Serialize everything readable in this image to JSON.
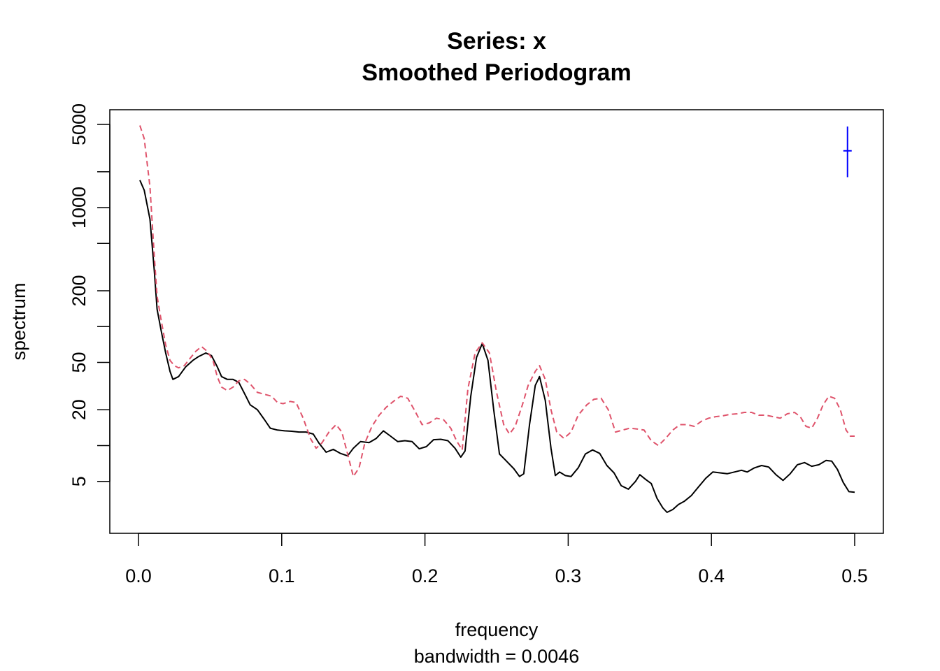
{
  "chart_data": {
    "type": "line",
    "title": "Series: x",
    "subtitle": "Smoothed Periodogram",
    "xlabel": "frequency",
    "xlabel_sub": "bandwidth = 0.0046",
    "ylabel": "spectrum",
    "y_scale": "log",
    "xlim": [
      0,
      0.5
    ],
    "ylim": [
      2.5,
      5000
    ],
    "x_ticks": [
      0.0,
      0.1,
      0.2,
      0.3,
      0.4,
      0.5
    ],
    "x_tick_labels": [
      "0.0",
      "0.1",
      "0.2",
      "0.3",
      "0.4",
      "0.5"
    ],
    "y_ticks": [
      5,
      10,
      20,
      50,
      100,
      200,
      500,
      1000,
      2000,
      5000
    ],
    "y_tick_labels": [
      "5",
      "",
      "20",
      "50",
      "",
      "200",
      "",
      "1000",
      "",
      "5000"
    ],
    "grid": false,
    "series": [
      {
        "color": "#000000",
        "dash": "solid",
        "points": [
          [
            0.001,
            1700
          ],
          [
            0.004,
            1400
          ],
          [
            0.008,
            800
          ],
          [
            0.011,
            300
          ],
          [
            0.013,
            140
          ],
          [
            0.016,
            90
          ],
          [
            0.019,
            60
          ],
          [
            0.022,
            42
          ],
          [
            0.024,
            36
          ],
          [
            0.028,
            38
          ],
          [
            0.033,
            46
          ],
          [
            0.038,
            52
          ],
          [
            0.042,
            56
          ],
          [
            0.047,
            60
          ],
          [
            0.051,
            57
          ],
          [
            0.055,
            46
          ],
          [
            0.058,
            38
          ],
          [
            0.062,
            36
          ],
          [
            0.066,
            36
          ],
          [
            0.07,
            34
          ],
          [
            0.075,
            26
          ],
          [
            0.078,
            22
          ],
          [
            0.083,
            20
          ],
          [
            0.088,
            16.5
          ],
          [
            0.092,
            14
          ],
          [
            0.097,
            13.5
          ],
          [
            0.102,
            13.3
          ],
          [
            0.107,
            13.2
          ],
          [
            0.112,
            13.0
          ],
          [
            0.117,
            13.0
          ],
          [
            0.122,
            12.5
          ],
          [
            0.126,
            10.5
          ],
          [
            0.131,
            8.8
          ],
          [
            0.136,
            9.3
          ],
          [
            0.141,
            8.6
          ],
          [
            0.146,
            8.2
          ],
          [
            0.15,
            9.5
          ],
          [
            0.155,
            10.8
          ],
          [
            0.161,
            10.6
          ],
          [
            0.166,
            11.5
          ],
          [
            0.171,
            13.3
          ],
          [
            0.176,
            12.0
          ],
          [
            0.181,
            10.8
          ],
          [
            0.186,
            11.0
          ],
          [
            0.191,
            10.8
          ],
          [
            0.196,
            9.4
          ],
          [
            0.201,
            9.8
          ],
          [
            0.206,
            11.2
          ],
          [
            0.211,
            11.3
          ],
          [
            0.216,
            11.0
          ],
          [
            0.221,
            9.5
          ],
          [
            0.225,
            8.0
          ],
          [
            0.228,
            9.0
          ],
          [
            0.232,
            26
          ],
          [
            0.236,
            55
          ],
          [
            0.24,
            72
          ],
          [
            0.244,
            52
          ],
          [
            0.248,
            20
          ],
          [
            0.252,
            8.5
          ],
          [
            0.256,
            7.6
          ],
          [
            0.262,
            6.4
          ],
          [
            0.266,
            5.5
          ],
          [
            0.269,
            5.8
          ],
          [
            0.273,
            15
          ],
          [
            0.277,
            32
          ],
          [
            0.28,
            38
          ],
          [
            0.284,
            24
          ],
          [
            0.288,
            9.5
          ],
          [
            0.291,
            5.6
          ],
          [
            0.294,
            6.0
          ],
          [
            0.298,
            5.6
          ],
          [
            0.302,
            5.5
          ],
          [
            0.307,
            6.5
          ],
          [
            0.312,
            8.5
          ],
          [
            0.317,
            9.2
          ],
          [
            0.322,
            8.6
          ],
          [
            0.327,
            6.8
          ],
          [
            0.332,
            5.9
          ],
          [
            0.337,
            4.6
          ],
          [
            0.342,
            4.3
          ],
          [
            0.347,
            5.0
          ],
          [
            0.35,
            5.7
          ],
          [
            0.354,
            5.2
          ],
          [
            0.358,
            4.8
          ],
          [
            0.362,
            3.6
          ],
          [
            0.366,
            3.0
          ],
          [
            0.369,
            2.75
          ],
          [
            0.373,
            2.9
          ],
          [
            0.377,
            3.2
          ],
          [
            0.381,
            3.4
          ],
          [
            0.386,
            3.8
          ],
          [
            0.391,
            4.5
          ],
          [
            0.396,
            5.3
          ],
          [
            0.401,
            6.0
          ],
          [
            0.406,
            5.9
          ],
          [
            0.411,
            5.8
          ],
          [
            0.416,
            6.0
          ],
          [
            0.421,
            6.2
          ],
          [
            0.425,
            6.0
          ],
          [
            0.43,
            6.5
          ],
          [
            0.435,
            6.8
          ],
          [
            0.44,
            6.6
          ],
          [
            0.445,
            5.7
          ],
          [
            0.45,
            5.1
          ],
          [
            0.455,
            5.8
          ],
          [
            0.46,
            6.9
          ],
          [
            0.465,
            7.2
          ],
          [
            0.47,
            6.7
          ],
          [
            0.475,
            6.9
          ],
          [
            0.48,
            7.5
          ],
          [
            0.484,
            7.4
          ],
          [
            0.488,
            6.3
          ],
          [
            0.492,
            4.9
          ],
          [
            0.496,
            4.1
          ],
          [
            0.5,
            4.05
          ]
        ]
      },
      {
        "color": "#df536b",
        "dash": "dashed",
        "points": [
          [
            0.001,
            4900
          ],
          [
            0.004,
            3800
          ],
          [
            0.008,
            1500
          ],
          [
            0.011,
            400
          ],
          [
            0.013,
            180
          ],
          [
            0.016,
            110
          ],
          [
            0.019,
            70
          ],
          [
            0.022,
            52
          ],
          [
            0.025,
            47
          ],
          [
            0.028,
            45
          ],
          [
            0.032,
            47
          ],
          [
            0.036,
            54
          ],
          [
            0.04,
            62
          ],
          [
            0.044,
            68
          ],
          [
            0.048,
            62
          ],
          [
            0.052,
            52
          ],
          [
            0.055,
            38
          ],
          [
            0.058,
            31
          ],
          [
            0.062,
            29
          ],
          [
            0.066,
            31
          ],
          [
            0.07,
            35
          ],
          [
            0.074,
            36
          ],
          [
            0.078,
            33
          ],
          [
            0.083,
            28
          ],
          [
            0.088,
            27
          ],
          [
            0.093,
            26
          ],
          [
            0.097,
            23
          ],
          [
            0.101,
            22.5
          ],
          [
            0.106,
            23.5
          ],
          [
            0.11,
            23
          ],
          [
            0.115,
            17
          ],
          [
            0.12,
            11.5
          ],
          [
            0.124,
            9.5
          ],
          [
            0.128,
            10.5
          ],
          [
            0.133,
            13
          ],
          [
            0.138,
            15
          ],
          [
            0.142,
            13
          ],
          [
            0.146,
            8.5
          ],
          [
            0.15,
            5.5
          ],
          [
            0.154,
            6.5
          ],
          [
            0.158,
            10.5
          ],
          [
            0.163,
            14.5
          ],
          [
            0.168,
            18
          ],
          [
            0.173,
            21
          ],
          [
            0.178,
            23.5
          ],
          [
            0.183,
            26
          ],
          [
            0.188,
            25
          ],
          [
            0.193,
            19.5
          ],
          [
            0.198,
            15
          ],
          [
            0.203,
            15.5
          ],
          [
            0.208,
            17
          ],
          [
            0.213,
            16.5
          ],
          [
            0.218,
            14
          ],
          [
            0.222,
            11
          ],
          [
            0.226,
            9.2
          ],
          [
            0.23,
            30
          ],
          [
            0.235,
            60
          ],
          [
            0.24,
            73
          ],
          [
            0.245,
            60
          ],
          [
            0.25,
            28
          ],
          [
            0.255,
            15
          ],
          [
            0.259,
            12.5
          ],
          [
            0.263,
            14.5
          ],
          [
            0.268,
            22
          ],
          [
            0.272,
            32
          ],
          [
            0.277,
            42
          ],
          [
            0.28,
            47
          ],
          [
            0.284,
            36
          ],
          [
            0.288,
            20
          ],
          [
            0.292,
            13
          ],
          [
            0.297,
            11.5
          ],
          [
            0.302,
            13
          ],
          [
            0.307,
            18
          ],
          [
            0.313,
            22
          ],
          [
            0.318,
            24.5
          ],
          [
            0.323,
            25
          ],
          [
            0.328,
            20
          ],
          [
            0.333,
            13
          ],
          [
            0.338,
            13.5
          ],
          [
            0.343,
            14
          ],
          [
            0.348,
            13.8
          ],
          [
            0.353,
            13.5
          ],
          [
            0.358,
            11
          ],
          [
            0.363,
            10
          ],
          [
            0.368,
            11.5
          ],
          [
            0.373,
            13.5
          ],
          [
            0.378,
            15
          ],
          [
            0.383,
            15
          ],
          [
            0.388,
            14.5
          ],
          [
            0.393,
            16
          ],
          [
            0.398,
            17
          ],
          [
            0.403,
            17.5
          ],
          [
            0.408,
            17.8
          ],
          [
            0.413,
            18.3
          ],
          [
            0.418,
            18.5
          ],
          [
            0.423,
            19
          ],
          [
            0.428,
            19
          ],
          [
            0.433,
            18
          ],
          [
            0.438,
            18
          ],
          [
            0.443,
            17.5
          ],
          [
            0.448,
            17
          ],
          [
            0.453,
            18.5
          ],
          [
            0.458,
            19
          ],
          [
            0.462,
            17.5
          ],
          [
            0.466,
            14.5
          ],
          [
            0.47,
            14
          ],
          [
            0.474,
            17
          ],
          [
            0.478,
            22
          ],
          [
            0.482,
            26
          ],
          [
            0.486,
            25
          ],
          [
            0.49,
            20
          ],
          [
            0.494,
            13.5
          ],
          [
            0.497,
            12
          ],
          [
            0.5,
            12
          ]
        ]
      }
    ],
    "ci_bar": {
      "x": 0.495,
      "lower": 1800,
      "center": 3000,
      "upper": 4800,
      "color": "#0000ff"
    }
  }
}
